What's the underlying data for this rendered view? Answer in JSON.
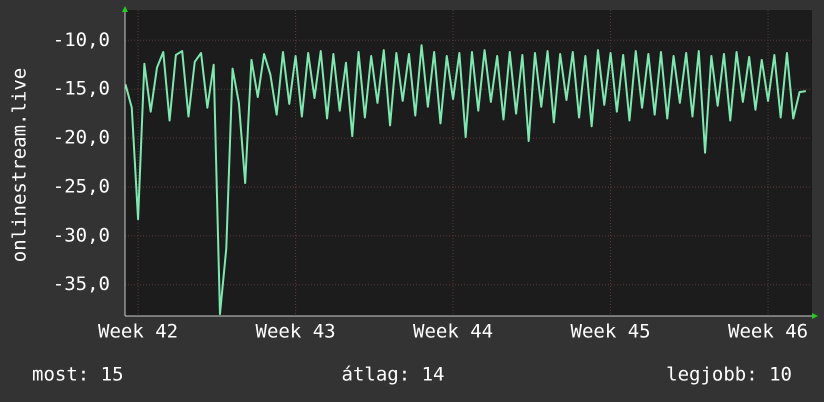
{
  "chart_data": {
    "type": "line",
    "ylabel": "onlinestream.live",
    "xlim": [
      41.917,
      46.279
    ],
    "ylim": [
      -38.2,
      -6.9
    ],
    "xticks": [
      {
        "value": 42,
        "label": "Week 42"
      },
      {
        "value": 43,
        "label": "Week 43"
      },
      {
        "value": 44,
        "label": "Week 44"
      },
      {
        "value": 45,
        "label": "Week 45"
      },
      {
        "value": 46,
        "label": "Week 46"
      }
    ],
    "yticks": [
      {
        "value": -35,
        "label": "-35,0"
      },
      {
        "value": -30,
        "label": "-30,0"
      },
      {
        "value": -25,
        "label": "-25,0"
      },
      {
        "value": -20,
        "label": "-20,0"
      },
      {
        "value": -15,
        "label": "-15,0"
      },
      {
        "value": -10,
        "label": "-10,0"
      }
    ],
    "grid": true,
    "x": [
      41.92,
      41.96,
      42.0,
      42.04,
      42.08,
      42.12,
      42.16,
      42.2,
      42.24,
      42.28,
      42.32,
      42.36,
      42.4,
      42.44,
      42.48,
      42.52,
      42.56,
      42.6,
      42.64,
      42.68,
      42.72,
      42.76,
      42.8,
      42.84,
      42.88,
      42.92,
      42.96,
      43.0,
      43.04,
      43.08,
      43.12,
      43.16,
      43.2,
      43.24,
      43.28,
      43.32,
      43.36,
      43.4,
      43.44,
      43.48,
      43.52,
      43.56,
      43.6,
      43.64,
      43.68,
      43.72,
      43.76,
      43.8,
      43.84,
      43.88,
      43.92,
      43.96,
      44.0,
      44.04,
      44.08,
      44.12,
      44.16,
      44.2,
      44.24,
      44.28,
      44.32,
      44.36,
      44.4,
      44.44,
      44.48,
      44.52,
      44.56,
      44.6,
      44.64,
      44.68,
      44.72,
      44.76,
      44.8,
      44.84,
      44.88,
      44.92,
      44.96,
      45.0,
      45.04,
      45.08,
      45.12,
      45.16,
      45.2,
      45.24,
      45.28,
      45.32,
      45.36,
      45.4,
      45.44,
      45.48,
      45.52,
      45.56,
      45.6,
      45.64,
      45.68,
      45.72,
      45.76,
      45.8,
      45.84,
      45.88,
      45.92,
      45.96,
      46.0,
      46.04,
      46.08,
      46.12,
      46.16,
      46.2,
      46.24
    ],
    "series": [
      {
        "color": "#7ee8b0",
        "values": [
          -14.5,
          -16.9,
          -28.3,
          -12.4,
          -17.3,
          -12.8,
          -11.2,
          -18.2,
          -11.5,
          -11.1,
          -17.8,
          -12.2,
          -11.3,
          -16.9,
          -12.5,
          -38.0,
          -31.3,
          -12.9,
          -16.4,
          -24.6,
          -12.0,
          -15.8,
          -11.4,
          -13.5,
          -17.6,
          -11.2,
          -16.5,
          -11.6,
          -17.8,
          -11.3,
          -15.9,
          -11.1,
          -18.0,
          -11.4,
          -17.2,
          -12.3,
          -19.8,
          -11.2,
          -17.9,
          -11.6,
          -16.4,
          -11.0,
          -18.7,
          -11.3,
          -16.2,
          -11.4,
          -17.7,
          -10.5,
          -16.8,
          -11.2,
          -18.5,
          -11.6,
          -16.0,
          -11.3,
          -19.9,
          -11.2,
          -17.2,
          -11.0,
          -16.3,
          -11.6,
          -18.1,
          -11.2,
          -17.5,
          -11.5,
          -20.3,
          -11.3,
          -16.8,
          -11.1,
          -18.4,
          -11.4,
          -16.1,
          -11.2,
          -17.9,
          -11.6,
          -18.8,
          -11.0,
          -16.6,
          -11.3,
          -17.3,
          -11.5,
          -18.2,
          -11.1,
          -16.9,
          -11.4,
          -17.6,
          -11.2,
          -18.0,
          -11.6,
          -16.4,
          -11.3,
          -17.8,
          -11.1,
          -21.5,
          -11.6,
          -16.7,
          -11.4,
          -18.2,
          -11.2,
          -16.3,
          -11.7,
          -17.1,
          -12.0,
          -16.2,
          -11.5,
          -17.9,
          -11.3,
          -18.0,
          -15.3,
          -15.2
        ]
      }
    ],
    "footer": [
      "most: 15",
      "átlag: 14",
      "legjobb: 10"
    ]
  }
}
